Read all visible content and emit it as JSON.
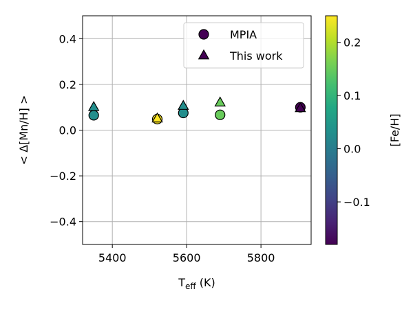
{
  "chart_data": {
    "type": "scatter",
    "xlabel": {
      "main": "T",
      "sub": "eff",
      "unit": " (K)"
    },
    "ylabel": "< Δ[Mn/H] >",
    "xlim": [
      5320,
      5935
    ],
    "ylim": [
      -0.5,
      0.5
    ],
    "x_ticks": [
      5400,
      5600,
      5800
    ],
    "y_ticks": [
      -0.4,
      -0.2,
      0.0,
      0.2,
      0.4
    ],
    "x_tick_labels": [
      "5400",
      "5600",
      "5800"
    ],
    "y_tick_labels": [
      "−0.4",
      "−0.2",
      "0.0",
      "0.2",
      "0.4"
    ],
    "grid": true,
    "legend_position": "top-right",
    "series": [
      {
        "name": "MPIA",
        "marker": "circle",
        "points": [
          {
            "x": 5350,
            "y": 0.065,
            "c": 0.03
          },
          {
            "x": 5521,
            "y": 0.048,
            "c": 0.25
          },
          {
            "x": 5591,
            "y": 0.075,
            "c": 0.03
          },
          {
            "x": 5690,
            "y": 0.067,
            "c": 0.15
          },
          {
            "x": 5906,
            "y": 0.1,
            "c": -0.18
          }
        ]
      },
      {
        "name": "This work",
        "marker": "triangle",
        "points": [
          {
            "x": 5350,
            "y": 0.1,
            "c": 0.03
          },
          {
            "x": 5521,
            "y": 0.05,
            "c": 0.25
          },
          {
            "x": 5591,
            "y": 0.105,
            "c": 0.03
          },
          {
            "x": 5690,
            "y": 0.12,
            "c": 0.15
          },
          {
            "x": 5906,
            "y": 0.095,
            "c": -0.18
          }
        ]
      }
    ],
    "colorbar": {
      "label": "[Fe/H]",
      "range": [
        -0.18,
        0.25
      ],
      "ticks": [
        0.2,
        0.1,
        0.0,
        -0.1
      ],
      "tick_labels": [
        "0.2",
        "0.1",
        "0.0",
        "−0.1"
      ],
      "colormap": "viridis"
    }
  },
  "colors": {
    "grid": "#b0b0b0",
    "legend_marker": "#440154",
    "edge": "#000000"
  }
}
